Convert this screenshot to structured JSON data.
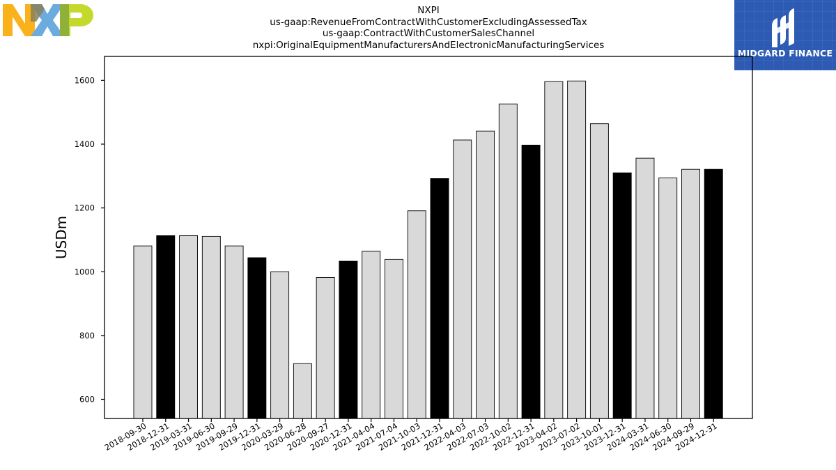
{
  "header": {
    "title_lines": [
      "NXPI",
      "us-gaap:RevenueFromContractWithCustomerExcludingAssessedTax",
      "us-gaap:ContractWithCustomerSalesChannel",
      "nxpi:OriginalEquipmentManufacturersAndElectronicManufacturingServices"
    ]
  },
  "logos": {
    "company": "NXP",
    "watermark_text": "MIDGARD FINANCE",
    "brand_colors": {
      "n": "#f9b21b",
      "x": "#6cabdd",
      "p": "#c5d92d",
      "midgard": "#2d5bb4"
    }
  },
  "chart_data": {
    "type": "bar",
    "title": "",
    "ylabel": "USDm",
    "xlabel": "",
    "ylim": [
      540,
      1675
    ],
    "yticks": [
      600,
      800,
      1000,
      1200,
      1400,
      1600
    ],
    "grid": false,
    "colors": {
      "quarter": "#d9d9d9",
      "year_end": "#000000"
    },
    "categories": [
      "2018-09-30",
      "2018-12-31",
      "2019-03-31",
      "2019-06-30",
      "2019-09-29",
      "2019-12-31",
      "2020-03-29",
      "2020-06-28",
      "2020-09-27",
      "2020-12-31",
      "2021-04-04",
      "2021-07-04",
      "2021-10-03",
      "2021-12-31",
      "2022-04-03",
      "2022-07-03",
      "2022-10-02",
      "2022-12-31",
      "2023-04-02",
      "2023-07-02",
      "2023-10-01",
      "2023-12-31",
      "2024-03-31",
      "2024-06-30",
      "2024-09-29",
      "2024-12-31"
    ],
    "values": [
      1081,
      1113,
      1113,
      1111,
      1081,
      1044,
      1000,
      712,
      982,
      1033,
      1064,
      1039,
      1191,
      1292,
      1413,
      1441,
      1526,
      1397,
      1596,
      1598,
      1464,
      1310,
      1356,
      1294,
      1321,
      1321
    ],
    "highlight": [
      false,
      true,
      false,
      false,
      false,
      true,
      false,
      false,
      false,
      true,
      false,
      false,
      false,
      true,
      false,
      false,
      false,
      true,
      false,
      false,
      false,
      true,
      false,
      false,
      false,
      true
    ]
  }
}
